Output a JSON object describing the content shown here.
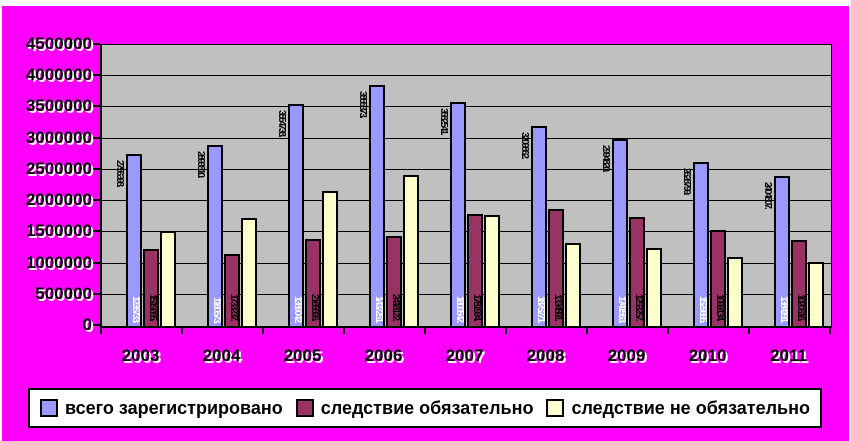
{
  "slide": {
    "background_color": "#ff00ff",
    "plot_background_color": "#c0c0c0"
  },
  "chart_data": {
    "type": "bar",
    "title": "",
    "xlabel": "",
    "ylabel": "",
    "categories": [
      "2003",
      "2004",
      "2005",
      "2006",
      "2007",
      "2008",
      "2009",
      "2010",
      "2011"
    ],
    "series": [
      {
        "name": "всего зарегистрировано",
        "color": "#9999ff",
        "border_color": "#000000",
        "label_color": "#000000",
        "label_position": "outside-top-left-vertical",
        "values": [
          2756398,
          2893810,
          3554738,
          3855373,
          3582541,
          3209862,
          2994820,
          2628799,
          2404807
        ],
        "labels": [
          "2756398.",
          "2893810.",
          "3554738.",
          "3855373.",
          "3582541.",
          "3209862.",
          "2994820.",
          "2628799.",
          "2404807."
        ]
      },
      {
        "name": "следствие обязательно",
        "color": "#993366",
        "border_color": "#000000",
        "label_color": "#ffffff",
        "label_position": "inside-base-left-vertical",
        "values": [
          1236733,
          1160573,
          1389042,
          1437251,
          1800547,
          1875271,
          1741563,
          1529665,
          1384191
        ],
        "labels": [
          "1236733.",
          "1160573.",
          "1389042.",
          "1437251.",
          "1800547.",
          "1875271.",
          "1741563.",
          "1529665.",
          "1384191."
        ]
      },
      {
        "name": "следствие не обязательно",
        "color": "#ffffcc",
        "border_color": "#000000",
        "label_color": "#000000",
        "label_position": "inside-base-left-vertical",
        "values": [
          1519665,
          1733237,
          2165696,
          2418122,
          1781994,
          1334591,
          1253257,
          1099134,
          1020616
        ],
        "labels": [
          "1519665.",
          "1733237.",
          "2165696.",
          "2418122.",
          "1781994.",
          "1334591.",
          "1253257.",
          "1099134.",
          "1020616."
        ]
      }
    ],
    "ylim": [
      0,
      4500000
    ],
    "ytick_step": 500000,
    "ytick_labels": [
      "0",
      "500000",
      "1000000",
      "1500000",
      "2000000",
      "2500000",
      "3000000",
      "3500000",
      "4000000",
      "4500000"
    ],
    "grid": true,
    "legend_position": "bottom"
  }
}
